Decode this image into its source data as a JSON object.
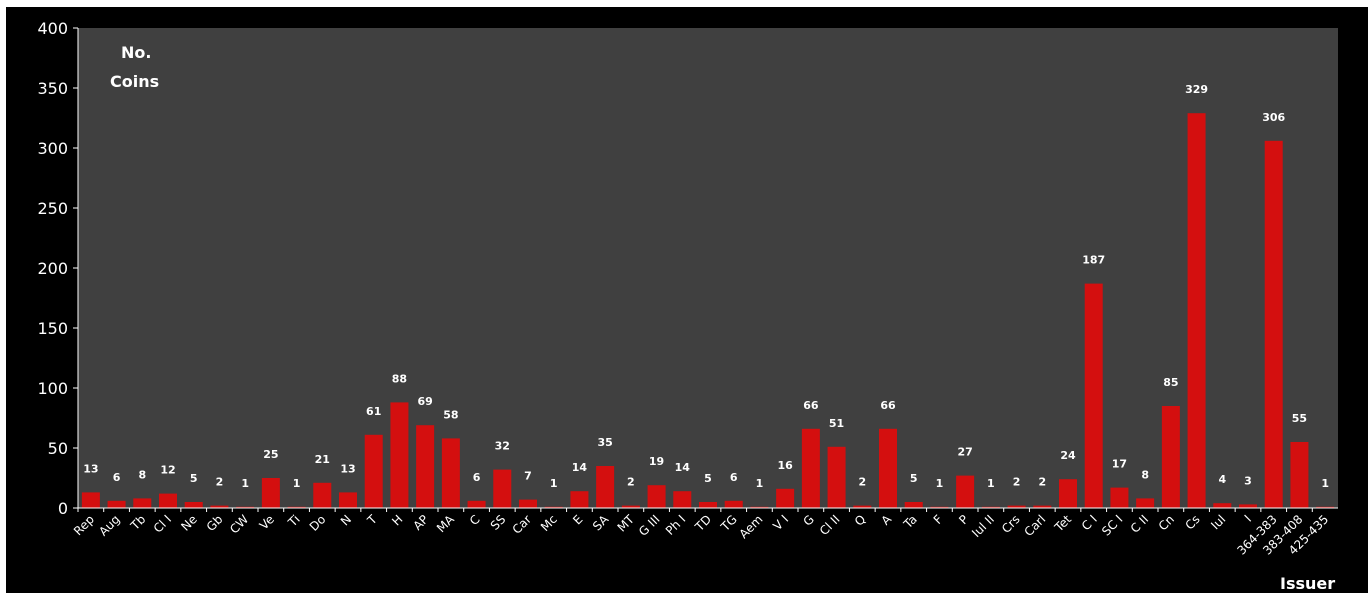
{
  "chart_data": {
    "type": "bar",
    "ylabel_line1": "No.",
    "ylabel_line2": "Coins",
    "xlabel": "Issuer",
    "ylim": [
      0,
      400
    ],
    "yticks": [
      0,
      50,
      100,
      150,
      200,
      250,
      300,
      350,
      400
    ],
    "grid": false,
    "colors": {
      "plot_background": "#404040",
      "outer_background": "#000000",
      "bar": "#d40f0f",
      "text": "#ffffff"
    },
    "categories": [
      "Rep",
      "Aug",
      "Tb",
      "Cl I",
      "Ne",
      "Gb",
      "CW",
      "Ve",
      "Ti",
      "Do",
      "N",
      "T",
      "H",
      "AP",
      "MA",
      "C",
      "SS",
      "Car",
      "Mc",
      "E",
      "SA",
      "MT",
      "G III",
      "Ph I",
      "TD",
      "TG",
      "Aem",
      "V I",
      "G",
      "Cl II",
      "Q",
      "A",
      "Ta",
      "F",
      "P",
      "Iul II",
      "Crs",
      "Carl",
      "Tet",
      "C I",
      "SC I",
      "C II",
      "Cn",
      "Cs",
      "Iul",
      "I",
      "364-383",
      "383-408",
      "425-435"
    ],
    "values": [
      13,
      6,
      8,
      12,
      5,
      2,
      1,
      25,
      1,
      21,
      13,
      61,
      88,
      69,
      58,
      6,
      32,
      7,
      1,
      14,
      35,
      2,
      19,
      14,
      5,
      6,
      1,
      16,
      66,
      51,
      2,
      66,
      5,
      1,
      27,
      1,
      2,
      2,
      24,
      187,
      17,
      8,
      85,
      329,
      4,
      3,
      306,
      55,
      1
    ]
  }
}
